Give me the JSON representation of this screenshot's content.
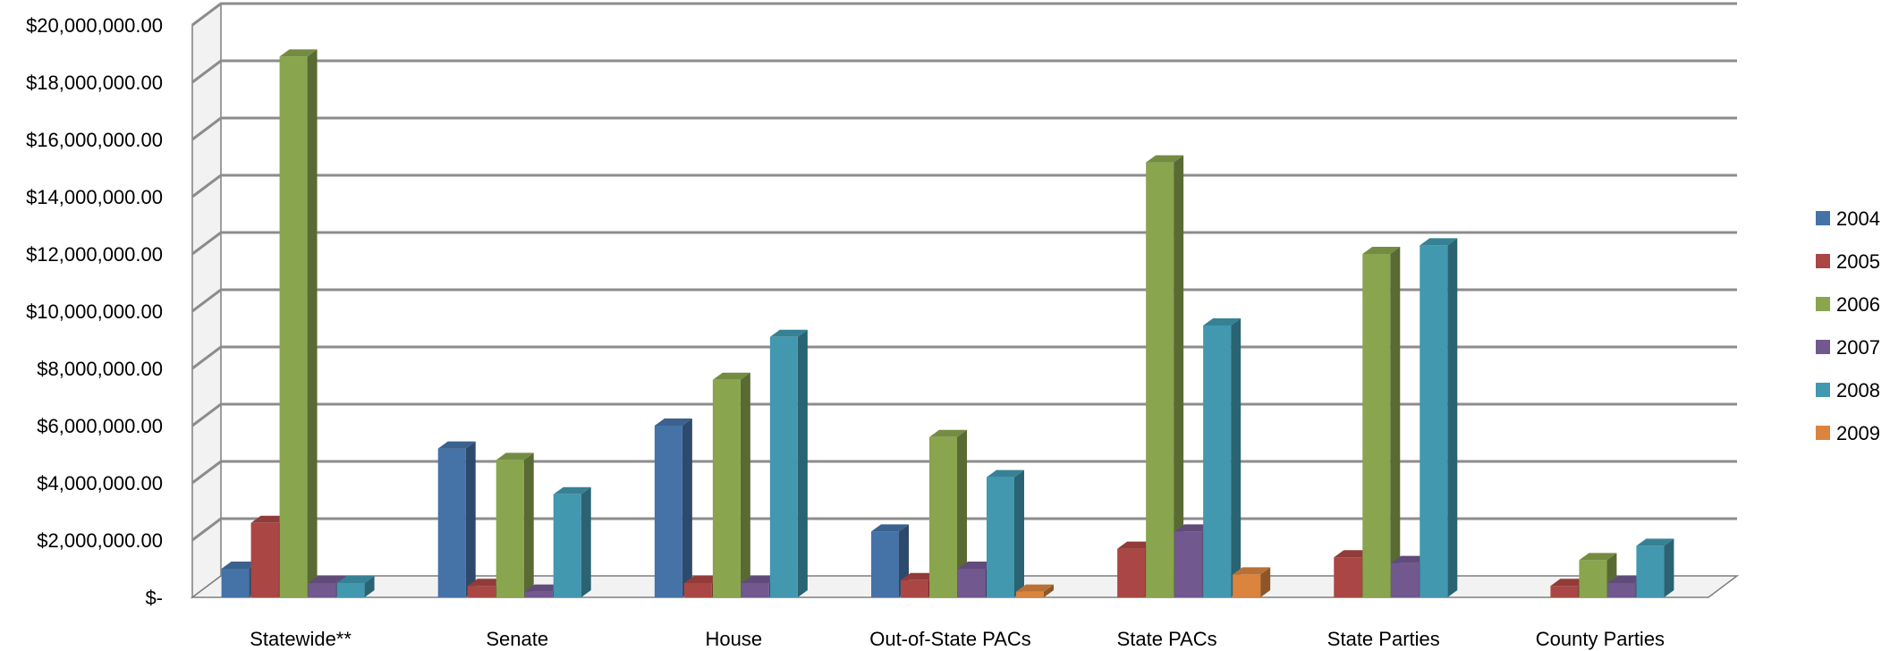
{
  "chart_data": {
    "type": "bar",
    "title": "",
    "xlabel": "",
    "ylabel": "",
    "ylim": [
      0,
      20000000
    ],
    "y_ticks": [
      {
        "value": 0,
        "label": "$-"
      },
      {
        "value": 2000000,
        "label": "$2,000,000.00"
      },
      {
        "value": 4000000,
        "label": "$4,000,000.00"
      },
      {
        "value": 6000000,
        "label": "$6,000,000.00"
      },
      {
        "value": 8000000,
        "label": "$8,000,000.00"
      },
      {
        "value": 10000000,
        "label": "$10,000,000.00"
      },
      {
        "value": 12000000,
        "label": "$12,000,000.00"
      },
      {
        "value": 14000000,
        "label": "$14,000,000.00"
      },
      {
        "value": 16000000,
        "label": "$16,000,000.00"
      },
      {
        "value": 18000000,
        "label": "$18,000,000.00"
      },
      {
        "value": 20000000,
        "label": "$20,000,000.00"
      }
    ],
    "categories": [
      "Statewide**",
      "Senate",
      "House",
      "Out-of-State PACs",
      "State PACs",
      "State Parties",
      "County Parties"
    ],
    "series": [
      {
        "name": "2004",
        "color": "#4572A7",
        "values": [
          1000000,
          5200000,
          6000000,
          2300000,
          0,
          0,
          0
        ]
      },
      {
        "name": "2005",
        "color": "#AA4643",
        "values": [
          2600000,
          400000,
          500000,
          600000,
          1700000,
          1400000,
          400000
        ]
      },
      {
        "name": "2006",
        "color": "#89A54E",
        "values": [
          18900000,
          4800000,
          7600000,
          5600000,
          15200000,
          12000000,
          1300000
        ]
      },
      {
        "name": "2007",
        "color": "#71588F",
        "values": [
          500000,
          200000,
          500000,
          1000000,
          2300000,
          1200000,
          500000
        ]
      },
      {
        "name": "2008",
        "color": "#4198AF",
        "values": [
          500000,
          3600000,
          9100000,
          4200000,
          9500000,
          12300000,
          1800000
        ]
      },
      {
        "name": "2009",
        "color": "#DB843D",
        "values": [
          0,
          0,
          0,
          200000,
          800000,
          0,
          0
        ]
      }
    ],
    "grid": true,
    "legend_position": "right",
    "style": "3d-clustered-column"
  }
}
